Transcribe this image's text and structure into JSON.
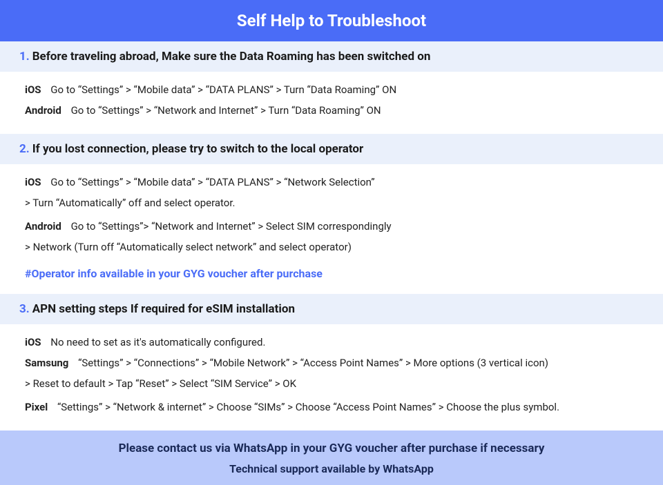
{
  "colors": {
    "header_bg": "#4a6cf7",
    "header_text": "#ffffff",
    "section_heading_bg": "#eaf0fb",
    "number_color": "#4a6cf7",
    "body_bg": "#ffffff",
    "body_text": "#222222",
    "note_color": "#4a6cf7",
    "footer_bg": "#b9c9fb",
    "footer_text": "#1a2957"
  },
  "header": {
    "title": "Self Help to Troubleshoot"
  },
  "sections": [
    {
      "number": "1.",
      "lead_bold": "Before traveling abroad,",
      "heading_rest": " Make sure the Data Roaming has been switched on",
      "items": [
        {
          "platform": "iOS",
          "text": "Go to “Settings” > “Mobile data” > “DATA PLANS” > Turn “Data Roaming” ON"
        },
        {
          "platform": "Android",
          "text": "Go to “Settings” > “Network and Internet” > Turn “Data Roaming” ON"
        }
      ]
    },
    {
      "number": "2.",
      "lead_bold": "If you lost connection, please try to switch to the local operator",
      "heading_rest": "",
      "items": [
        {
          "platform": "iOS",
          "text": "Go to “Settings” > “Mobile data” > “DATA PLANS” > “Network Selection”",
          "continuation": "> Turn “Automatically” off and select operator."
        },
        {
          "platform": "Android",
          "text": "Go to “Settings”>  “Network and Internet” > Select SIM correspondingly",
          "continuation": "> Network (Turn off “Automatically select network” and select operator)"
        }
      ],
      "note": "#Operator info available in your GYG voucher after purchase"
    },
    {
      "number": "3.",
      "lead_bold": "APN setting steps If required for eSIM installation",
      "heading_rest": "",
      "items": [
        {
          "platform": "iOS",
          "text": "No need to set as it's automatically configured."
        },
        {
          "platform": "Samsung",
          "text": "“Settings” > “Connections” > “Mobile Network” > “Access Point Names” > More options (3 vertical icon)",
          "continuation": "> Reset to default > Tap “Reset” > Select “SIM Service” > OK"
        },
        {
          "platform": "Pixel",
          "text": "“Settings” > “Network & internet” > Choose “SIMs” > Choose “Access Point Names” > Choose the plus symbol."
        }
      ]
    }
  ],
  "footer": {
    "line1": "Please contact us via WhatsApp  in your GYG voucher after purchase if necessary",
    "line2": "Technical support available by WhatsApp"
  }
}
